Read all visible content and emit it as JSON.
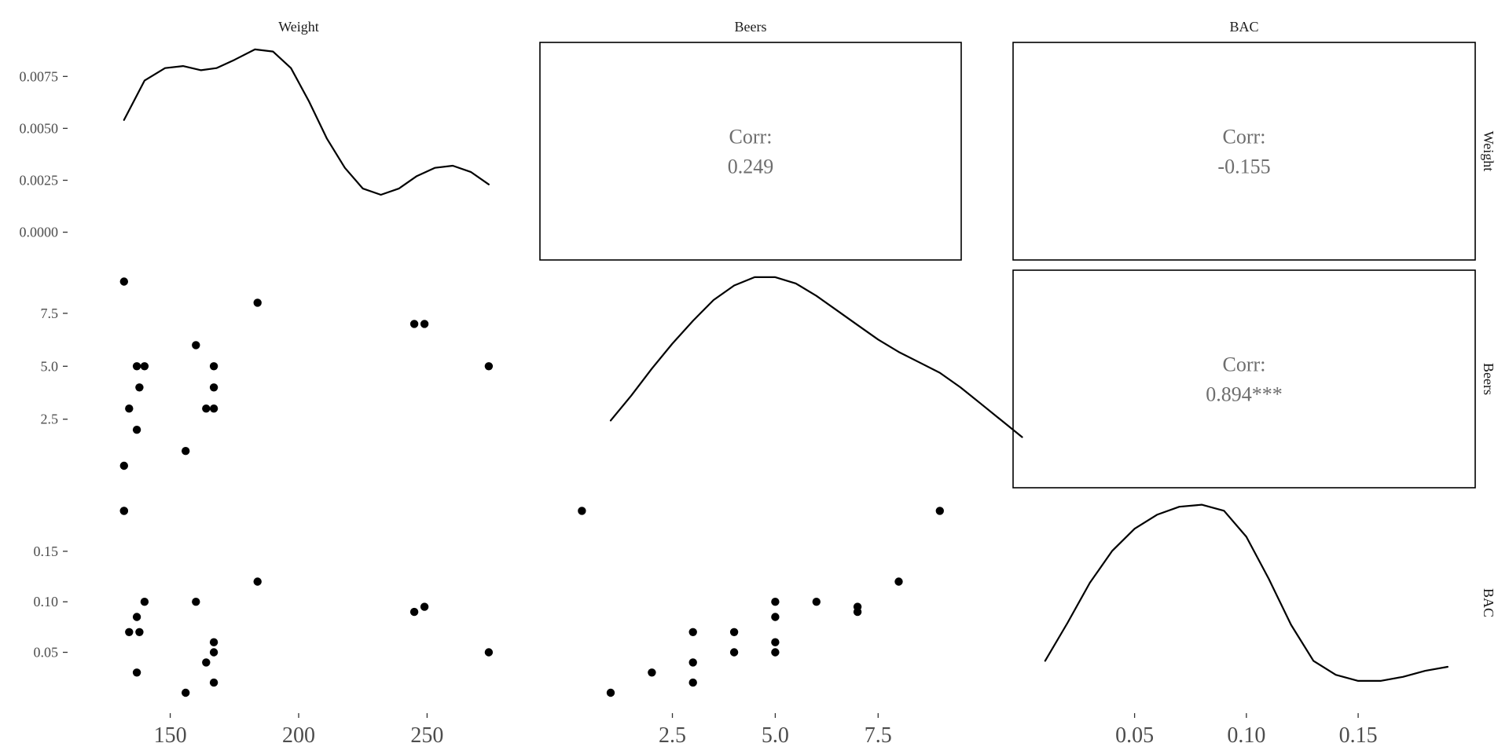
{
  "chart_data": {
    "type": "scatter",
    "variables": [
      "Weight",
      "Beers",
      "BAC"
    ],
    "ranges": {
      "Weight": [
        118,
        282
      ],
      "Beers": [
        -0.7,
        9.5
      ],
      "BAC": [
        -0.004,
        0.202
      ]
    },
    "density_y_range": [
      -0.0013,
      0.0091
    ],
    "y_ticks": {
      "density": [
        {
          "value": 0.0,
          "label": "0.0000"
        },
        {
          "value": 0.0025,
          "label": "0.0025"
        },
        {
          "value": 0.005,
          "label": "0.0050"
        },
        {
          "value": 0.0075,
          "label": "0.0075"
        }
      ],
      "Beers": [
        {
          "value": 2.5,
          "label": "2.5"
        },
        {
          "value": 5.0,
          "label": "5.0"
        },
        {
          "value": 7.5,
          "label": "7.5"
        }
      ],
      "BAC": [
        {
          "value": 0.05,
          "label": "0.05"
        },
        {
          "value": 0.1,
          "label": "0.10"
        },
        {
          "value": 0.15,
          "label": "0.15"
        }
      ]
    },
    "x_ticks": {
      "Weight": [
        {
          "value": 150,
          "label": "150"
        },
        {
          "value": 200,
          "label": "200"
        },
        {
          "value": 250,
          "label": "250"
        }
      ],
      "Beers": [
        {
          "value": 2.5,
          "label": "2.5"
        },
        {
          "value": 5.0,
          "label": "5.0"
        },
        {
          "value": 7.5,
          "label": "7.5"
        }
      ],
      "BAC": [
        {
          "value": 0.05,
          "label": "0.05"
        },
        {
          "value": 0.1,
          "label": "0.10"
        },
        {
          "value": 0.15,
          "label": "0.15"
        }
      ]
    },
    "observations": [
      {
        "weight": 132,
        "beers": 9,
        "bac": 0.19
      },
      {
        "weight": 132,
        "beers": 0.3,
        "bac": 0.19
      },
      {
        "weight": 184,
        "beers": 8,
        "bac": 0.12
      },
      {
        "weight": 245,
        "beers": 7,
        "bac": 0.09
      },
      {
        "weight": 249,
        "beers": 7,
        "bac": 0.095
      },
      {
        "weight": 160,
        "beers": 6,
        "bac": 0.1
      },
      {
        "weight": 137,
        "beers": 5,
        "bac": 0.085
      },
      {
        "weight": 140,
        "beers": 5,
        "bac": 0.1
      },
      {
        "weight": 167,
        "beers": 5,
        "bac": 0.06
      },
      {
        "weight": 274,
        "beers": 5,
        "bac": 0.05
      },
      {
        "weight": 138,
        "beers": 4,
        "bac": 0.07
      },
      {
        "weight": 167,
        "beers": 4,
        "bac": 0.05
      },
      {
        "weight": 134,
        "beers": 3,
        "bac": 0.07
      },
      {
        "weight": 164,
        "beers": 3,
        "bac": 0.04
      },
      {
        "weight": 167,
        "beers": 3,
        "bac": 0.02
      },
      {
        "weight": 137,
        "beers": 2,
        "bac": 0.03
      },
      {
        "weight": 156,
        "beers": 1,
        "bac": 0.01
      }
    ],
    "density_curves": {
      "Weight": [
        [
          132,
          0.0054
        ],
        [
          140,
          0.0073
        ],
        [
          148,
          0.0079
        ],
        [
          155,
          0.008
        ],
        [
          162,
          0.0078
        ],
        [
          168,
          0.0079
        ],
        [
          175,
          0.0083
        ],
        [
          183,
          0.0088
        ],
        [
          190,
          0.0087
        ],
        [
          197,
          0.0079
        ],
        [
          204,
          0.0063
        ],
        [
          211,
          0.0045
        ],
        [
          218,
          0.0031
        ],
        [
          225,
          0.0021
        ],
        [
          232,
          0.0018
        ],
        [
          239,
          0.0021
        ],
        [
          246,
          0.0027
        ],
        [
          253,
          0.0031
        ],
        [
          260,
          0.0032
        ],
        [
          267,
          0.0029
        ],
        [
          274,
          0.0023
        ]
      ],
      "Beers": [
        [
          1,
          0.0019
        ],
        [
          1.5,
          0.0031
        ],
        [
          2,
          0.0044
        ],
        [
          2.5,
          0.0056
        ],
        [
          3,
          0.0067
        ],
        [
          3.5,
          0.0077
        ],
        [
          4,
          0.0084
        ],
        [
          4.5,
          0.0088
        ],
        [
          5,
          0.0088
        ],
        [
          5.5,
          0.0085
        ],
        [
          6,
          0.0079
        ],
        [
          6.5,
          0.0072
        ],
        [
          7,
          0.0065
        ],
        [
          7.5,
          0.0058
        ],
        [
          8,
          0.0052
        ],
        [
          8.5,
          0.0047
        ],
        [
          9,
          0.0042
        ],
        [
          9.5,
          0.0035
        ],
        [
          10,
          0.0027
        ],
        [
          10.5,
          0.0019
        ],
        [
          11,
          0.0011
        ]
      ],
      "BAC": [
        [
          0.01,
          0.001
        ],
        [
          0.02,
          0.0029
        ],
        [
          0.03,
          0.0049
        ],
        [
          0.04,
          0.0065
        ],
        [
          0.05,
          0.0076
        ],
        [
          0.06,
          0.0083
        ],
        [
          0.07,
          0.0087
        ],
        [
          0.08,
          0.0088
        ],
        [
          0.09,
          0.0085
        ],
        [
          0.1,
          0.0072
        ],
        [
          0.11,
          0.0051
        ],
        [
          0.12,
          0.0028
        ],
        [
          0.13,
          0.001
        ],
        [
          0.14,
          0.0003
        ],
        [
          0.15,
          0.0
        ],
        [
          0.16,
          0.0
        ],
        [
          0.17,
          0.0002
        ],
        [
          0.18,
          0.0005
        ],
        [
          0.19,
          0.0007
        ]
      ]
    },
    "correlations": [
      {
        "row": "Weight",
        "col": "Beers",
        "label": "Corr:",
        "value": "0.249"
      },
      {
        "row": "Weight",
        "col": "BAC",
        "label": "Corr:",
        "value": "-0.155"
      },
      {
        "row": "Beers",
        "col": "BAC",
        "label": "Corr:",
        "value": "0.894***"
      }
    ]
  }
}
